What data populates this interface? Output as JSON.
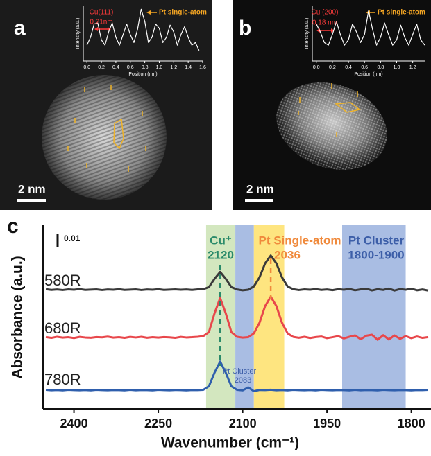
{
  "panel_labels": [
    "a",
    "b",
    "c"
  ],
  "scale_bars": [
    "2 nm",
    "2 nm"
  ],
  "chart_data": [
    {
      "type": "line",
      "xlabel": "Position (nm)",
      "ylabel": "Intensity (a.u.)",
      "x": [
        0,
        0.05,
        0.1,
        0.15,
        0.2,
        0.25,
        0.3,
        0.35,
        0.4,
        0.45,
        0.5,
        0.55,
        0.6,
        0.65,
        0.7,
        0.75,
        0.8,
        0.85,
        0.9,
        0.95,
        1.0,
        1.05,
        1.1,
        1.15,
        1.2,
        1.25,
        1.3,
        1.35,
        1.4,
        1.45,
        1.5,
        1.55
      ],
      "series": [
        {
          "color": "#ffffff",
          "values": [
            0.3,
            0.45,
            0.7,
            0.72,
            0.4,
            0.3,
            0.55,
            0.72,
            0.45,
            0.3,
            0.5,
            0.7,
            0.5,
            0.35,
            0.6,
            0.98,
            0.75,
            0.35,
            0.45,
            0.7,
            0.62,
            0.35,
            0.45,
            0.68,
            0.55,
            0.3,
            0.5,
            0.65,
            0.45,
            0.3,
            0.35,
            0.2
          ]
        }
      ],
      "xlim": [
        -0.05,
        1.6
      ],
      "ylim": [
        0,
        1.05
      ],
      "xticks": [
        {
          "value": 0,
          "label": "0.0"
        },
        0.2,
        0.4,
        0.6,
        0.8,
        {
          "value": 1,
          "label": "1.0"
        },
        1.2,
        1.4,
        1.6
      ],
      "annotations": [
        {
          "text": "Cu(111)",
          "color": "#ff3b3b"
        },
        {
          "text": "0.21nm",
          "color": "#ff3b3b"
        },
        {
          "text": "Pt single-atom",
          "color": "#f5a623"
        }
      ]
    },
    {
      "type": "line",
      "xlabel": "Position (nm)",
      "ylabel": "Intensity (a.u.)",
      "x": [
        0,
        0.05,
        0.1,
        0.15,
        0.2,
        0.25,
        0.3,
        0.35,
        0.4,
        0.45,
        0.5,
        0.55,
        0.6,
        0.65,
        0.7,
        0.75,
        0.8,
        0.85,
        0.9,
        0.95,
        1.0,
        1.05,
        1.1,
        1.15,
        1.2,
        1.25,
        1.3,
        1.35
      ],
      "series": [
        {
          "color": "#ffffff",
          "values": [
            0.7,
            0.55,
            0.35,
            0.3,
            0.5,
            0.75,
            0.5,
            0.3,
            0.4,
            0.7,
            0.55,
            0.35,
            0.5,
            0.95,
            0.6,
            0.3,
            0.45,
            0.72,
            0.5,
            0.3,
            0.4,
            0.68,
            0.45,
            0.3,
            0.5,
            0.7,
            0.4,
            0.3
          ]
        }
      ],
      "xlim": [
        -0.05,
        1.35
      ],
      "ylim": [
        0,
        1.05
      ],
      "xticks": [
        {
          "value": 0,
          "label": "0.0"
        },
        0.2,
        0.4,
        0.6,
        0.8,
        {
          "value": 1,
          "label": "1.0"
        },
        1.2
      ],
      "annotations": [
        {
          "text": "Cu (200)",
          "color": "#ff3b3b"
        },
        {
          "text": "0.18 nm",
          "color": "#ff3b3b"
        },
        {
          "text": "Pt single-atom",
          "color": "#f5a623"
        }
      ]
    },
    {
      "type": "line",
      "xlabel": "Wavenumber (cm⁻¹)",
      "ylabel": "Absorbance (a.u.)",
      "x": [
        2450,
        2440,
        2430,
        2420,
        2410,
        2400,
        2390,
        2380,
        2370,
        2360,
        2350,
        2340,
        2330,
        2320,
        2310,
        2300,
        2290,
        2280,
        2270,
        2260,
        2250,
        2240,
        2230,
        2220,
        2210,
        2200,
        2190,
        2180,
        2170,
        2160,
        2150,
        2140,
        2130,
        2120,
        2110,
        2100,
        2090,
        2080,
        2070,
        2060,
        2050,
        2040,
        2030,
        2020,
        2010,
        2000,
        1990,
        1980,
        1970,
        1960,
        1950,
        1940,
        1930,
        1920,
        1910,
        1900,
        1890,
        1880,
        1870,
        1860,
        1850,
        1840,
        1830,
        1820,
        1810,
        1800,
        1790,
        1780,
        1770
      ],
      "xlim": [
        2455,
        1765
      ],
      "ylim": [
        0,
        0.135
      ],
      "xticks": [
        2400,
        2250,
        2100,
        1950,
        1800
      ],
      "scale_bar": 0.01,
      "series": [
        {
          "name": "580R",
          "color": "#3a3a3a",
          "values": [
            0.088,
            0.0875,
            0.0878,
            0.0874,
            0.0879,
            0.0876,
            0.0881,
            0.0875,
            0.0877,
            0.0879,
            0.0874,
            0.0878,
            0.0876,
            0.088,
            0.0875,
            0.0877,
            0.0879,
            0.0874,
            0.0878,
            0.0876,
            0.088,
            0.0875,
            0.0877,
            0.0879,
            0.0876,
            0.0878,
            0.0875,
            0.0879,
            0.088,
            0.0895,
            0.0956,
            0.1007,
            0.0956,
            0.0895,
            0.0878,
            0.0872,
            0.0876,
            0.09,
            0.0967,
            0.107,
            0.1127,
            0.107,
            0.0967,
            0.09,
            0.088,
            0.0874,
            0.0879,
            0.0876,
            0.0881,
            0.0875,
            0.0878,
            0.0873,
            0.088,
            0.0876,
            0.0882,
            0.0872,
            0.0879,
            0.0884,
            0.0871,
            0.088,
            0.0875,
            0.0885,
            0.087,
            0.0881,
            0.0876,
            0.0884,
            0.0872,
            0.0878,
            0.087
          ]
        },
        {
          "name": "680R",
          "color": "#e8474b",
          "values": [
            0.0528,
            0.0522,
            0.053,
            0.0524,
            0.0527,
            0.0521,
            0.0529,
            0.0525,
            0.0523,
            0.0528,
            0.0526,
            0.0531,
            0.0524,
            0.0527,
            0.0522,
            0.0529,
            0.0525,
            0.053,
            0.0523,
            0.0527,
            0.0524,
            0.0528,
            0.0526,
            0.0522,
            0.0529,
            0.0525,
            0.0527,
            0.053,
            0.0535,
            0.0564,
            0.0702,
            0.0815,
            0.0702,
            0.0564,
            0.053,
            0.0524,
            0.0527,
            0.0555,
            0.0633,
            0.0756,
            0.0825,
            0.0756,
            0.0633,
            0.0555,
            0.0529,
            0.0523,
            0.053,
            0.0521,
            0.0528,
            0.0532,
            0.052,
            0.0527,
            0.0535,
            0.0518,
            0.053,
            0.054,
            0.0512,
            0.0538,
            0.0545,
            0.0508,
            0.0542,
            0.051,
            0.054,
            0.0515,
            0.0535,
            0.052,
            0.0532,
            0.0522,
            0.0528
          ]
        },
        {
          "name": "780R",
          "color": "#2f5fad",
          "values": [
            0.014,
            0.0137,
            0.0139,
            0.0136,
            0.014,
            0.0138,
            0.0137,
            0.0139,
            0.0136,
            0.014,
            0.0138,
            0.0137,
            0.0139,
            0.0138,
            0.0136,
            0.014,
            0.0137,
            0.0139,
            0.0138,
            0.0136,
            0.014,
            0.0138,
            0.0137,
            0.0139,
            0.0138,
            0.0136,
            0.0139,
            0.0138,
            0.014,
            0.0166,
            0.0266,
            0.0348,
            0.0266,
            0.0166,
            0.014,
            0.0136,
            0.0158,
            0.013,
            0.0139,
            0.0138,
            0.0141,
            0.0137,
            0.0139,
            0.0136,
            0.014,
            0.0138,
            0.0137,
            0.0139,
            0.0136,
            0.014,
            0.0138,
            0.0137,
            0.0139,
            0.0138,
            0.0136,
            0.014,
            0.0137,
            0.0139,
            0.0138,
            0.0136,
            0.014,
            0.0138,
            0.0137,
            0.0139,
            0.0138,
            0.0136,
            0.0139,
            0.0138,
            0.014
          ]
        }
      ],
      "bands": [
        {
          "from": 2165,
          "to": 2113,
          "color": "#d3e7bf"
        },
        {
          "from": 2113,
          "to": 2080,
          "color": "#a9bde3"
        },
        {
          "from": 2080,
          "to": 2026,
          "color": "#fee580"
        },
        {
          "from": 1923,
          "to": 1810,
          "color": "#a9bde3"
        }
      ],
      "guides": [
        {
          "x": 2140,
          "color": "#2a8a6a"
        },
        {
          "x": 2050,
          "color": "#f08a3c"
        }
      ],
      "annotations": [
        {
          "text": "Cu⁺",
          "color": "#2a8a6a"
        },
        {
          "text": "2120",
          "color": "#2a8a6a"
        },
        {
          "text": "Pt Single-atom",
          "color": "#f08a3c"
        },
        {
          "text": "2036",
          "color": "#f08a3c"
        },
        {
          "text": "Pt Cluster",
          "color": "#3c5ea8"
        },
        {
          "text": "1800-1900",
          "color": "#3c5ea8"
        },
        {
          "text": "Pt Cluster",
          "color": "#3c5ea8"
        },
        {
          "text": "2083",
          "color": "#3c5ea8"
        }
      ]
    }
  ]
}
